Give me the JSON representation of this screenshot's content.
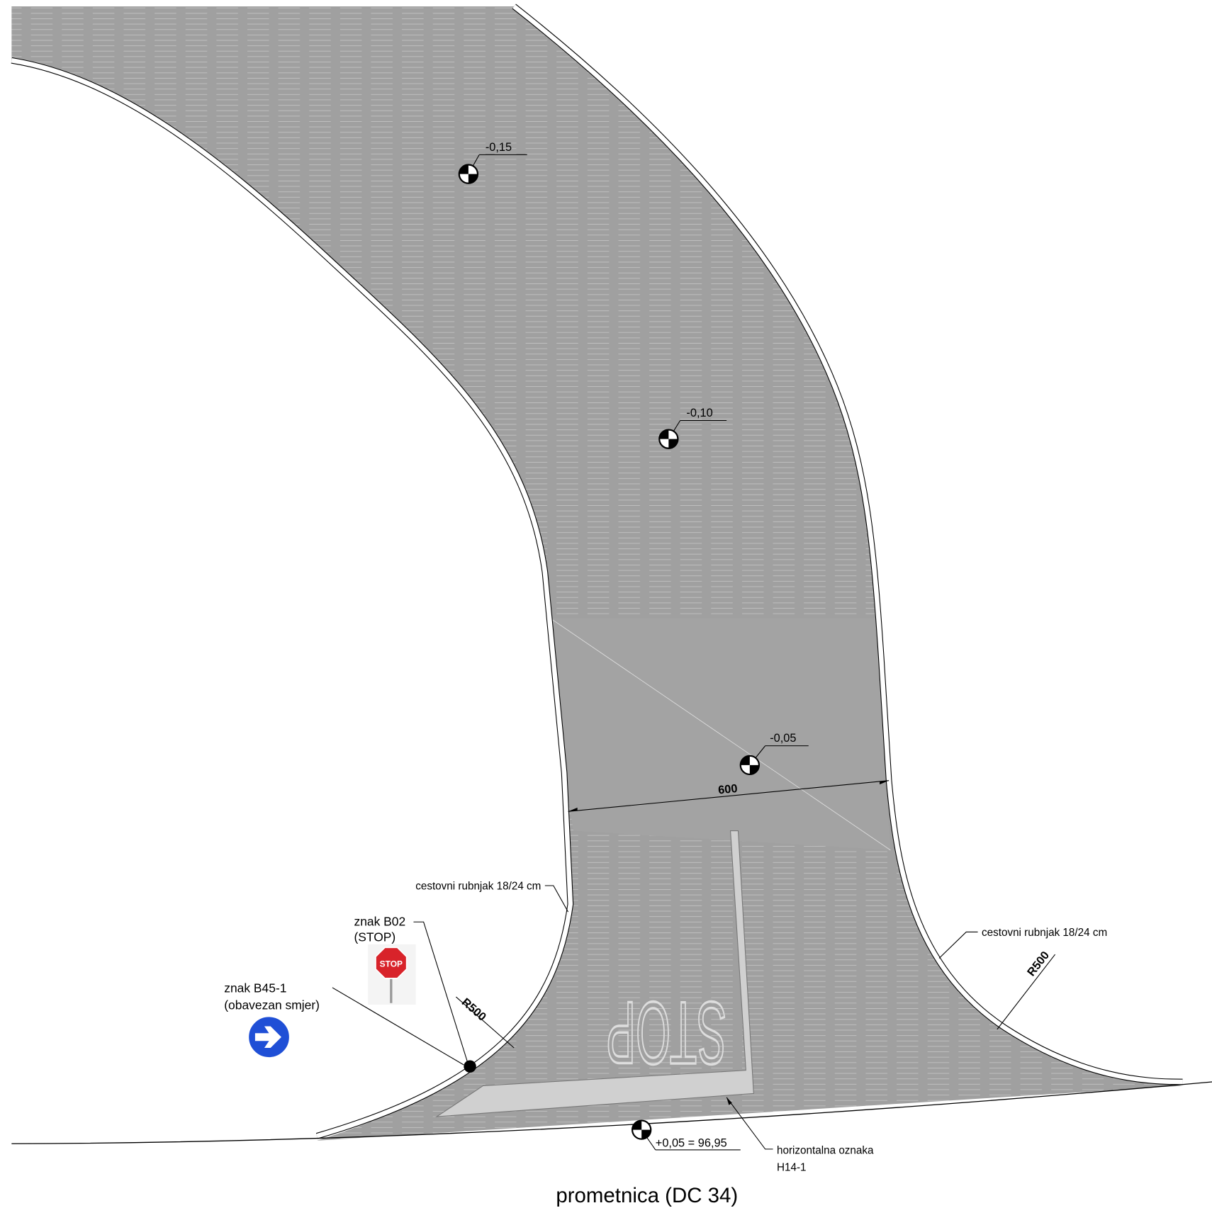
{
  "elevation_marks": [
    {
      "label": "-0,15"
    },
    {
      "label": "-0,10"
    },
    {
      "label": "-0,05"
    }
  ],
  "spot_level": {
    "label": "+0,05 = 96,95"
  },
  "dimension": {
    "label": "600"
  },
  "radius_labels": [
    "R500",
    "R500"
  ],
  "curb_notes": [
    "cestovni rubnjak 18/24 cm",
    "cestovni rubnjak 18/24 cm"
  ],
  "signs": [
    {
      "lines": [
        "znak B02",
        "(STOP)"
      ],
      "face": "STOP"
    },
    {
      "lines": [
        "znak B45-1",
        "(obavezan smjer)"
      ]
    }
  ],
  "road_marking": {
    "text": "STOP",
    "lines": [
      "horizontalna oznaka",
      "H14-1"
    ]
  },
  "caption": "prometnica (DC 34)"
}
